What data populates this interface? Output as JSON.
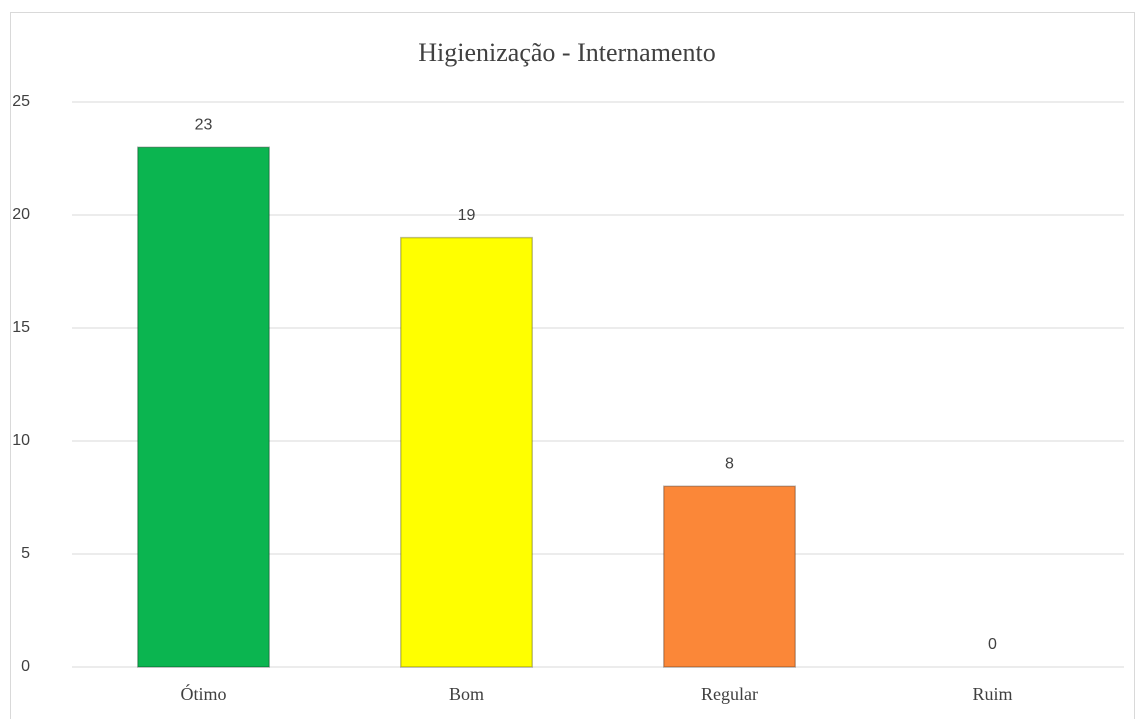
{
  "chart_data": {
    "type": "bar",
    "title": "Higienização - Internamento",
    "categories": [
      "Ótimo",
      "Bom",
      "Regular",
      "Ruim"
    ],
    "values": [
      23,
      19,
      8,
      0
    ],
    "colors": [
      "#0bb550",
      "#ffff00",
      "#fb8738",
      "#a5a5a5"
    ],
    "ylim": [
      0,
      25
    ],
    "yticks": [
      0,
      5,
      10,
      15,
      20,
      25
    ],
    "grid": true
  }
}
